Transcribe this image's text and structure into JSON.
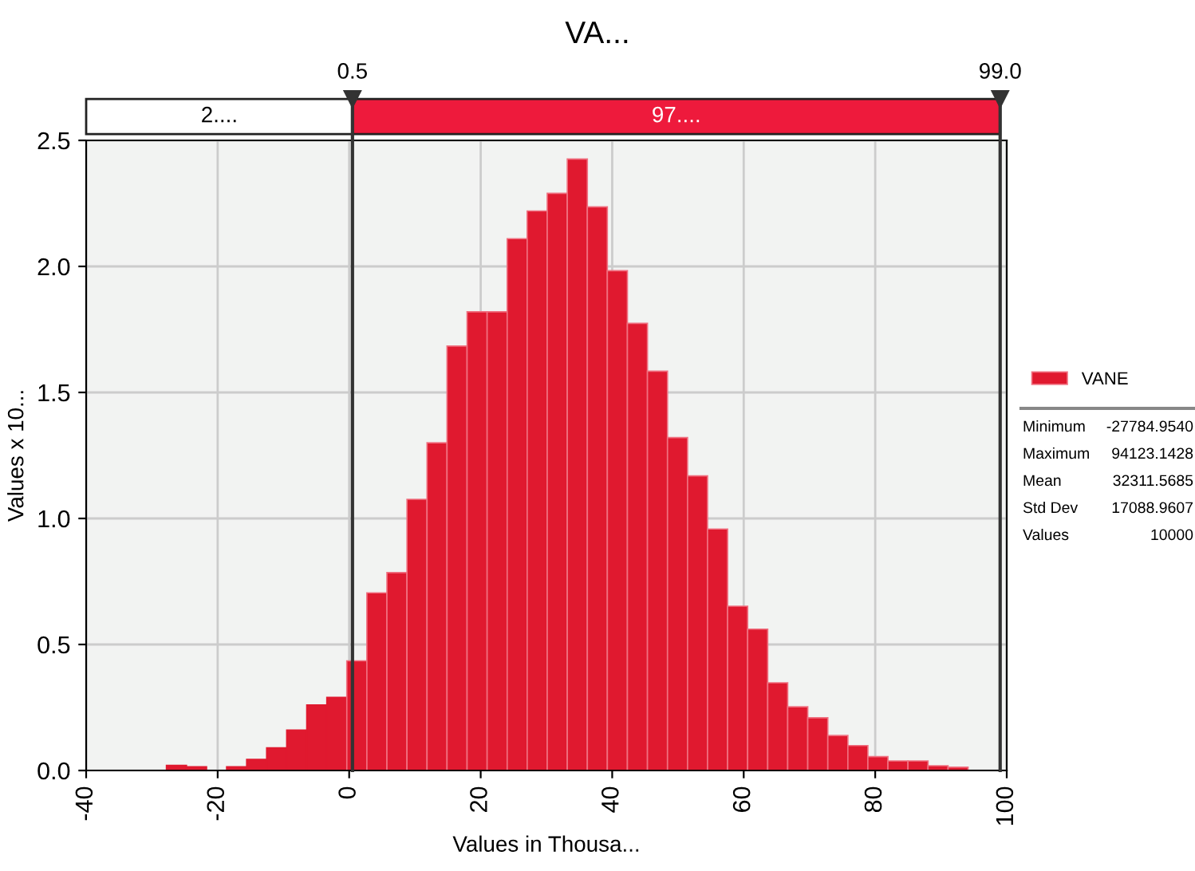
{
  "chart_data": {
    "type": "histogram",
    "title": "VA...",
    "xlabel": "Values in Thousa...",
    "ylabel": "Values x 10...",
    "bins": [
      -27.79,
      -24.74,
      -21.69,
      -18.64,
      -15.59,
      -12.55,
      -9.5,
      -6.45,
      -3.4,
      -0.36,
      2.69,
      5.74,
      8.79,
      11.84,
      14.88,
      17.93,
      20.98,
      24.03,
      27.07,
      30.12,
      33.17,
      36.22,
      39.26,
      42.31,
      45.36,
      48.41,
      51.46,
      54.5,
      57.55,
      60.6,
      63.65,
      66.69,
      69.74,
      72.79,
      75.84,
      78.88,
      81.93,
      84.98,
      88.03,
      91.08,
      94.12
    ],
    "series": [
      {
        "name": "VANE",
        "color": "#e0192f",
        "values": [
          0.02,
          0.015,
          null,
          0.015,
          0.044,
          0.09,
          0.16,
          0.26,
          0.29,
          0.435,
          0.705,
          0.785,
          1.076,
          1.3,
          1.684,
          1.82,
          1.82,
          2.11,
          2.22,
          2.29,
          2.426,
          2.236,
          1.983,
          1.774,
          1.584,
          1.321,
          1.169,
          0.958,
          0.652,
          0.561,
          0.348,
          0.253,
          0.209,
          0.139,
          0.099,
          0.055,
          0.038,
          0.038,
          0.019,
          0.013
        ]
      }
    ],
    "xlim": [
      -40,
      100
    ],
    "xticks": [
      -40,
      -20,
      0,
      20,
      40,
      60,
      80,
      100
    ],
    "ylim": [
      0,
      2.5
    ],
    "yticks": [
      {
        "value": 0,
        "label": "0.0"
      },
      {
        "value": 0.5,
        "label": "0.5"
      },
      {
        "value": 1,
        "label": "1.0"
      },
      {
        "value": 1.5,
        "label": "1.5"
      },
      {
        "value": 2,
        "label": "2.0"
      },
      {
        "value": 2.5,
        "label": "2.5"
      }
    ],
    "ref_lines": [
      {
        "axis": "x",
        "value": 0.5,
        "label": "0.5",
        "color": "#333333"
      },
      {
        "axis": "x",
        "value": 99.0,
        "label": "99.0",
        "color": "#333333"
      }
    ],
    "annotations": [
      "2....",
      "97....",
      "Minimum",
      "-27784.9540",
      "Maximum",
      "94123.1428",
      "Mean",
      "32311.5685",
      "Std Dev",
      "17088.9607",
      "Values",
      "10000"
    ],
    "grid": true,
    "legend": "right"
  }
}
